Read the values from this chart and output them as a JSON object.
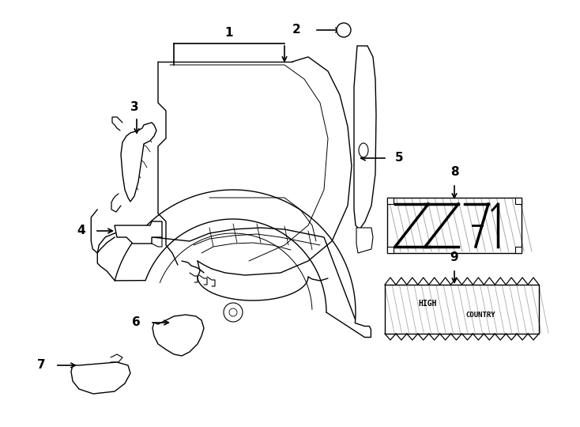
{
  "bg_color": "#ffffff",
  "line_color": "#000000",
  "lw": 1.0
}
